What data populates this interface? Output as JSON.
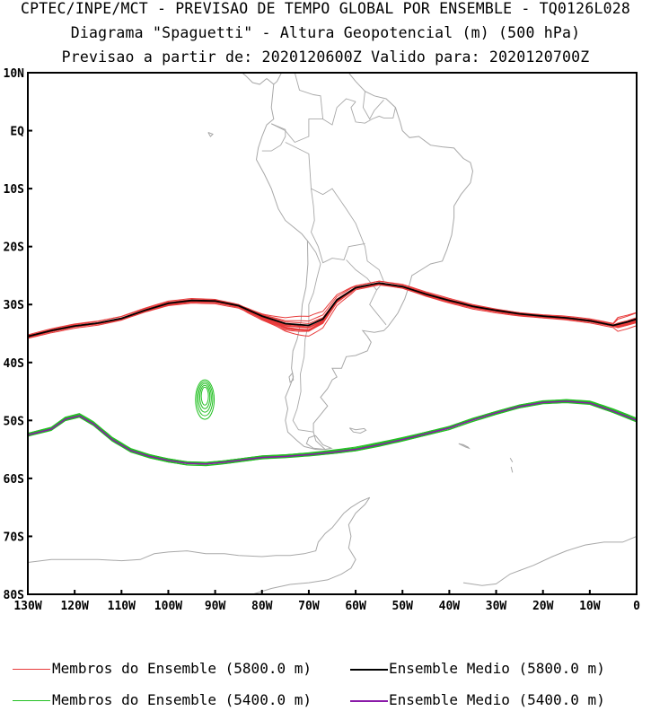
{
  "title": {
    "line1": "CPTEC/INPE/MCT - PREVISAO DE TEMPO GLOBAL POR ENSEMBLE - TQ0126L028",
    "line2": "Diagrama \"Spaguetti\" - Altura Geopotencial (m) (500 hPa)",
    "line3": "Previsao a partir de: 2020120600Z  Valido para: 2020120700Z"
  },
  "map": {
    "lat_labels": [
      "10N",
      "EQ",
      "10S",
      "20S",
      "30S",
      "40S",
      "50S",
      "60S",
      "70S",
      "80S"
    ],
    "lon_labels": [
      "130W",
      "120W",
      "110W",
      "100W",
      "90W",
      "80W",
      "70W",
      "60W",
      "50W",
      "40W",
      "30W",
      "20W",
      "10W",
      "0"
    ],
    "lat_range": [
      10,
      -80
    ],
    "lon_range": [
      -130,
      0
    ]
  },
  "colors": {
    "member_5800": "#e83a3a",
    "member_5400": "#22c022",
    "mean_5800": "#000000",
    "mean_5400": "#8a1aa8",
    "coast": "#a8a8a8"
  },
  "legend": {
    "member_5800": "Membros do Ensemble (5800.0 m)",
    "mean_5800": "Ensemble Medio (5800.0 m)",
    "member_5400": "Membros do Ensemble (5400.0 m)",
    "mean_5400": "Ensemble Medio (5400.0 m)"
  },
  "chart_data": {
    "type": "line",
    "title": "Diagrama Spaguetti - Altura Geopotencial (m) (500 hPa)",
    "x": "longitude (deg)",
    "y": "latitude (deg)",
    "series": [
      {
        "name": "Ensemble Medio (5800.0 m)",
        "points": [
          [
            -130,
            -35.5
          ],
          [
            -125,
            -34.5
          ],
          [
            -120,
            -33.7
          ],
          [
            -115,
            -33.2
          ],
          [
            -110,
            -32.4
          ],
          [
            -105,
            -31
          ],
          [
            -100,
            -29.8
          ],
          [
            -95,
            -29.3
          ],
          [
            -90,
            -29.4
          ],
          [
            -85,
            -30.2
          ],
          [
            -80,
            -32
          ],
          [
            -75,
            -33.3
          ],
          [
            -70,
            -33.6
          ],
          [
            -67,
            -32.5
          ],
          [
            -64,
            -29.2
          ],
          [
            -60,
            -27.1
          ],
          [
            -55,
            -26.3
          ],
          [
            -50,
            -26.9
          ],
          [
            -45,
            -28.2
          ],
          [
            -40,
            -29.3
          ],
          [
            -35,
            -30.3
          ],
          [
            -30,
            -31
          ],
          [
            -25,
            -31.6
          ],
          [
            -20,
            -32
          ],
          [
            -15,
            -32.3
          ],
          [
            -10,
            -32.8
          ],
          [
            -5,
            -33.6
          ],
          [
            -2,
            -33
          ],
          [
            0,
            -32.5
          ]
        ]
      },
      {
        "name": "Ensemble Medio (5400.0 m)",
        "points": [
          [
            -130,
            -52.5
          ],
          [
            -125,
            -51.5
          ],
          [
            -122,
            -49.8
          ],
          [
            -119,
            -49.2
          ],
          [
            -116,
            -50.6
          ],
          [
            -112,
            -53.3
          ],
          [
            -108,
            -55.2
          ],
          [
            -104,
            -56.2
          ],
          [
            -100,
            -56.9
          ],
          [
            -96,
            -57.4
          ],
          [
            -92,
            -57.5
          ],
          [
            -88,
            -57.2
          ],
          [
            -84,
            -56.8
          ],
          [
            -80,
            -56.4
          ],
          [
            -75,
            -56.2
          ],
          [
            -70,
            -55.9
          ],
          [
            -65,
            -55.5
          ],
          [
            -60,
            -55
          ],
          [
            -55,
            -54.2
          ],
          [
            -50,
            -53.3
          ],
          [
            -45,
            -52.3
          ],
          [
            -40,
            -51.3
          ],
          [
            -35,
            -49.9
          ],
          [
            -30,
            -48.7
          ],
          [
            -25,
            -47.6
          ],
          [
            -20,
            -46.9
          ],
          [
            -15,
            -46.7
          ],
          [
            -10,
            -47
          ],
          [
            -5,
            -48.4
          ],
          [
            0,
            -50
          ]
        ]
      }
    ],
    "members_5800": 15,
    "members_5400": 15
  }
}
